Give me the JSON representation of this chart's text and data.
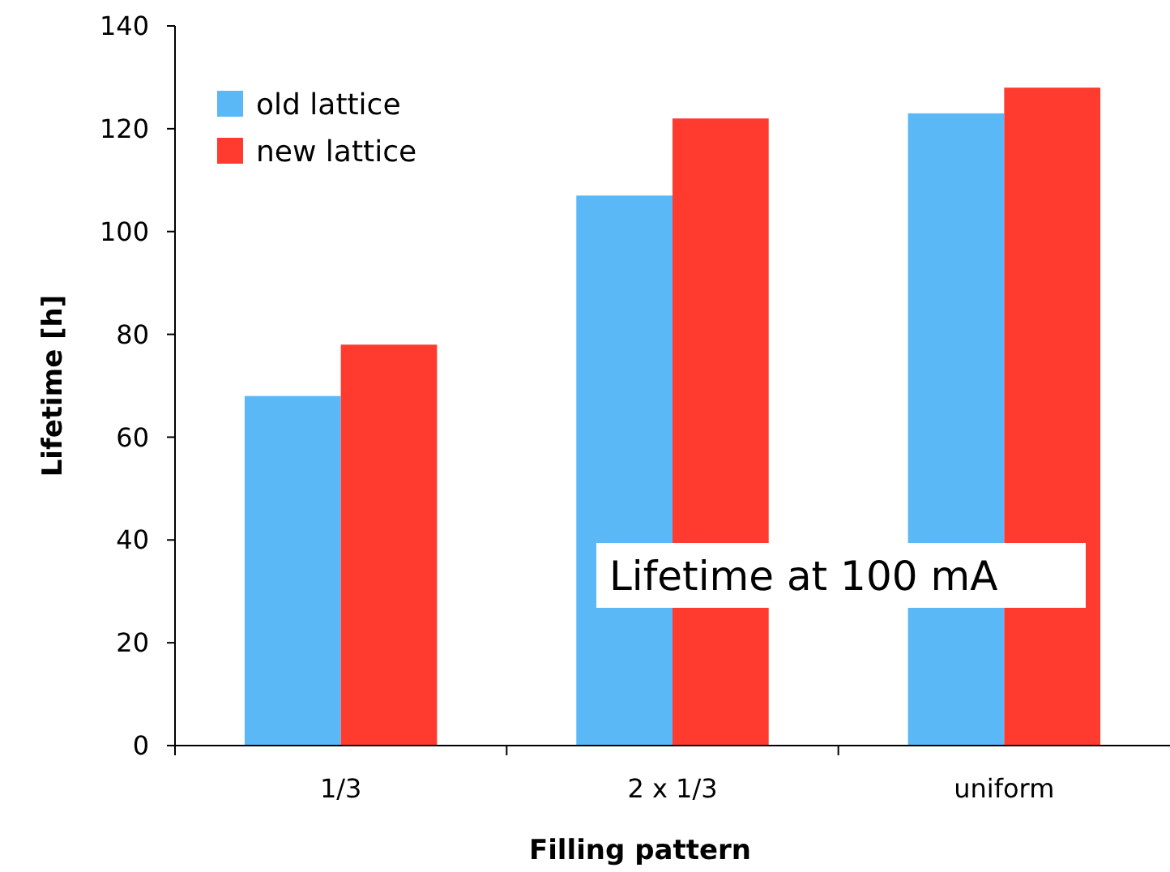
{
  "chart_data": {
    "type": "bar",
    "xlabel": "Filling pattern",
    "ylabel": "Lifetime [h]",
    "categories": [
      "1/3",
      "2 x 1/3",
      "uniform"
    ],
    "series": [
      {
        "name": "old lattice",
        "color": "#5bb8f7",
        "values": [
          68,
          107,
          123
        ]
      },
      {
        "name": "new lattice",
        "color": "#ff3b2f",
        "values": [
          78,
          122,
          128
        ]
      }
    ],
    "ylim": [
      0,
      140
    ],
    "yticks": [
      0,
      20,
      40,
      60,
      80,
      100,
      120,
      140
    ],
    "grid": false,
    "legend": "top left",
    "annotations": [
      "Lifetime at 100 mA"
    ]
  }
}
